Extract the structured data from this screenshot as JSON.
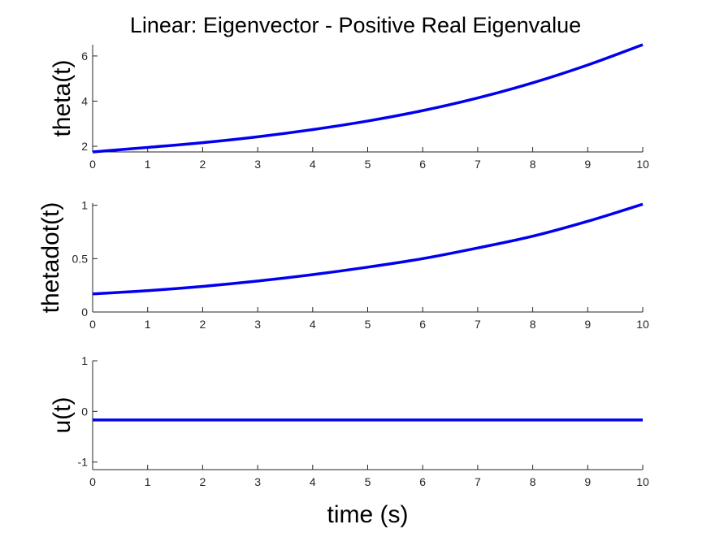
{
  "colors": {
    "line": "#0000ee",
    "axis": "#262626",
    "background": "#ffffff"
  },
  "chart_data": [
    {
      "type": "line",
      "title": "Linear: Eigenvector - Positive Real Eigenvalue",
      "xlabel": "",
      "ylabel": "theta(t)",
      "xlim": [
        0,
        10
      ],
      "ylim": [
        1.75,
        6.5
      ],
      "xticks": [
        0,
        1,
        2,
        3,
        4,
        5,
        6,
        7,
        8,
        9,
        10
      ],
      "yticks": [
        2,
        4,
        6
      ],
      "grid": false,
      "series": [
        {
          "x": [
            0,
            1,
            2,
            3,
            4,
            5,
            6,
            7,
            8,
            9,
            10
          ],
          "y": [
            1.75,
            1.95,
            2.16,
            2.42,
            2.74,
            3.12,
            3.58,
            4.14,
            4.81,
            5.6,
            6.5
          ]
        }
      ]
    },
    {
      "type": "line",
      "title": "",
      "xlabel": "",
      "ylabel": "thetadot(t)",
      "xlim": [
        0,
        10
      ],
      "ylim": [
        0,
        1.02
      ],
      "xticks": [
        0,
        1,
        2,
        3,
        4,
        5,
        6,
        7,
        8,
        9,
        10
      ],
      "yticks": [
        0,
        0.5,
        1
      ],
      "grid": false,
      "series": [
        {
          "x": [
            0,
            1,
            2,
            3,
            4,
            5,
            6,
            7,
            8,
            9,
            10
          ],
          "y": [
            0.17,
            0.2,
            0.24,
            0.29,
            0.35,
            0.42,
            0.5,
            0.6,
            0.71,
            0.85,
            1.01
          ]
        }
      ]
    },
    {
      "type": "line",
      "title": "",
      "xlabel": "time (s)",
      "ylabel": "u(t)",
      "xlim": [
        0,
        10
      ],
      "ylim": [
        -1.15,
        1
      ],
      "xticks": [
        0,
        1,
        2,
        3,
        4,
        5,
        6,
        7,
        8,
        9,
        10
      ],
      "yticks": [
        -1,
        0,
        1
      ],
      "grid": false,
      "series": [
        {
          "x": [
            0,
            10
          ],
          "y": [
            -0.17,
            -0.17
          ]
        }
      ]
    }
  ]
}
